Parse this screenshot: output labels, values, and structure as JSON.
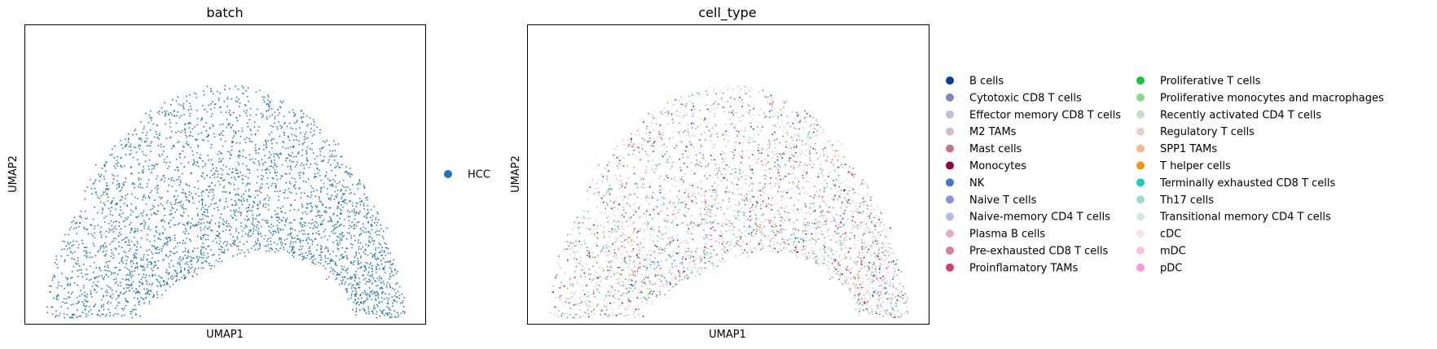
{
  "chart_data": [
    {
      "type": "scatter",
      "title": "batch",
      "xlabel": "UMAP1",
      "ylabel": "UMAP2",
      "grid": false,
      "axis_ticks": false,
      "legend_placement": "right",
      "series": [
        {
          "name": "HCC",
          "color": "#1f77b4"
        }
      ]
    },
    {
      "type": "scatter",
      "title": "cell_type",
      "xlabel": "UMAP1",
      "ylabel": "UMAP2",
      "grid": false,
      "axis_ticks": false,
      "legend_placement": "right",
      "legend_columns": 2,
      "series": [
        {
          "name": "B cells",
          "color": "#023fa5"
        },
        {
          "name": "Cytotoxic CD8 T cells",
          "color": "#7d87b9"
        },
        {
          "name": "Effector memory CD8 T cells",
          "color": "#bec1d4"
        },
        {
          "name": "M2 TAMs",
          "color": "#d6bcc0"
        },
        {
          "name": "Mast cells",
          "color": "#bb7784"
        },
        {
          "name": "Monocytes",
          "color": "#8e063b"
        },
        {
          "name": "NK",
          "color": "#4a6fe3"
        },
        {
          "name": "Naive T cells",
          "color": "#8595e1"
        },
        {
          "name": "Naive-memory CD4 T cells",
          "color": "#b5bbe3"
        },
        {
          "name": "Plasma B cells",
          "color": "#e6afb9"
        },
        {
          "name": "Pre-exhausted CD8 T cells",
          "color": "#e07b91"
        },
        {
          "name": "Proinflamatory TAMs",
          "color": "#d33f6a"
        },
        {
          "name": "Proliferative T cells",
          "color": "#11c638"
        },
        {
          "name": "Proliferative monocytes and macrophages",
          "color": "#8dd593"
        },
        {
          "name": "Recently activated CD4 T cells",
          "color": "#c6dec7"
        },
        {
          "name": "Regulatory T cells",
          "color": "#ead3c6"
        },
        {
          "name": "SPP1 TAMs",
          "color": "#f0b98d"
        },
        {
          "name": "T helper cells",
          "color": "#ef9708"
        },
        {
          "name": "Terminally exhausted CD8 T cells",
          "color": "#0fcfc0"
        },
        {
          "name": "Th17 cells",
          "color": "#9cded6"
        },
        {
          "name": "Transitional memory CD4 T cells",
          "color": "#d5eae7"
        },
        {
          "name": "cDC",
          "color": "#f3e1eb"
        },
        {
          "name": "mDC",
          "color": "#f6c4e1"
        },
        {
          "name": "pDC",
          "color": "#f79cd4"
        }
      ]
    }
  ]
}
